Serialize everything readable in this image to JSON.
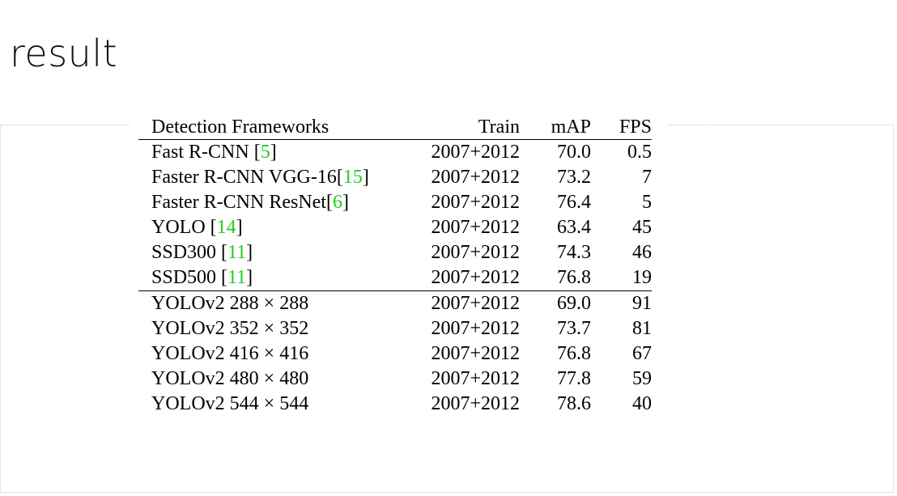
{
  "slide": {
    "title": "result"
  },
  "table": {
    "headers": {
      "name": "Detection Frameworks",
      "train": "Train",
      "map": "mAP",
      "fps": "FPS"
    },
    "rows": [
      {
        "name": "Fast R-CNN ",
        "cite_open": "[",
        "cite": "5",
        "cite_close": "]",
        "train": "2007+2012",
        "map": "70.0",
        "fps": "0.5"
      },
      {
        "name": "Faster R-CNN VGG-16",
        "cite_open": "[",
        "cite": "15",
        "cite_close": "]",
        "train": "2007+2012",
        "map": "73.2",
        "fps": "7"
      },
      {
        "name": "Faster R-CNN ResNet",
        "cite_open": "[",
        "cite": "6",
        "cite_close": "]",
        "train": "2007+2012",
        "map": "76.4",
        "fps": "5"
      },
      {
        "name": "YOLO ",
        "cite_open": "[",
        "cite": "14",
        "cite_close": "]",
        "train": "2007+2012",
        "map": "63.4",
        "fps": "45"
      },
      {
        "name": "SSD300 ",
        "cite_open": "[",
        "cite": "11",
        "cite_close": "]",
        "train": "2007+2012",
        "map": "74.3",
        "fps": "46"
      },
      {
        "name": "SSD500 ",
        "cite_open": "[",
        "cite": "11",
        "cite_close": "]",
        "train": "2007+2012",
        "map": "76.8",
        "fps": "19"
      },
      {
        "name": "YOLOv2 288 × 288",
        "train": "2007+2012",
        "map": "69.0",
        "fps": "91"
      },
      {
        "name": "YOLOv2 352 × 352",
        "train": "2007+2012",
        "map": "73.7",
        "fps": "81"
      },
      {
        "name": "YOLOv2 416 × 416",
        "train": "2007+2012",
        "map": "76.8",
        "fps": "67"
      },
      {
        "name": "YOLOv2 480 × 480",
        "train": "2007+2012",
        "map": "77.8",
        "fps": "59"
      },
      {
        "name": "YOLOv2 544 × 544",
        "train": "2007+2012",
        "map": "78.6",
        "fps": "40"
      }
    ]
  },
  "colors": {
    "citation": "#22cc22",
    "text": "#000000"
  }
}
